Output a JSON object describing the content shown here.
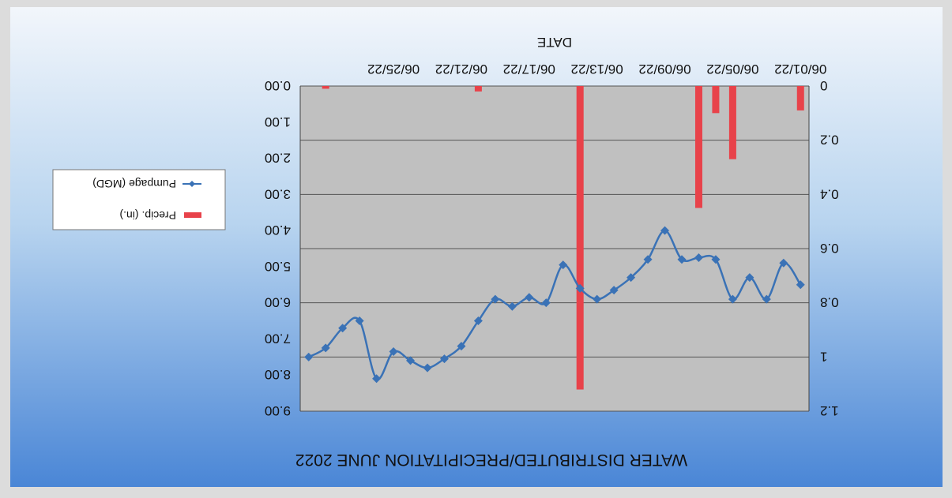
{
  "chart_data": {
    "type": "bar+line",
    "title": "WATER DISTRIBUTED/PRECIPITATION JUNE 2022",
    "xlabel": "DATE",
    "x_tick_labels": [
      "06/01/22",
      "06/05/22",
      "06/09/22",
      "06/13/22",
      "06/17/22",
      "06/21/22",
      "06/25/22"
    ],
    "x": [
      "06/01/22",
      "06/02/22",
      "06/03/22",
      "06/04/22",
      "06/05/22",
      "06/06/22",
      "06/07/22",
      "06/08/22",
      "06/09/22",
      "06/10/22",
      "06/11/22",
      "06/12/22",
      "06/13/22",
      "06/14/22",
      "06/15/22",
      "06/16/22",
      "06/17/22",
      "06/18/22",
      "06/19/22",
      "06/20/22",
      "06/21/22",
      "06/22/22",
      "06/23/22",
      "06/24/22",
      "06/25/22",
      "06/26/22",
      "06/27/22",
      "06/28/22",
      "06/29/22",
      "06/30/22"
    ],
    "left_axis": {
      "label": "",
      "ticks": [
        "0",
        "0.2",
        "0.4",
        "0.6",
        "0.8",
        "1",
        "1.2"
      ],
      "ylim": [
        0,
        1.2
      ],
      "series": "Precip. (in.)"
    },
    "right_axis": {
      "label": "",
      "ticks": [
        "0.00",
        "1.00",
        "2.00",
        "3.00",
        "4.00",
        "5.00",
        "6.00",
        "7.00",
        "8.00",
        "9.00"
      ],
      "ylim": [
        0,
        9
      ]
    },
    "series": [
      {
        "name": "Precip. (in.)",
        "kind": "bar",
        "axis": "left",
        "color": "#e8424a",
        "values": [
          0.09,
          0,
          0,
          0,
          0.27,
          0.1,
          0.45,
          0,
          0,
          0,
          0,
          0,
          0,
          1.12,
          0,
          0,
          0,
          0,
          0,
          0.02,
          0,
          0,
          0,
          0,
          0,
          0,
          0,
          0,
          0.01,
          0
        ]
      },
      {
        "name": "Pumpage (MGD)",
        "kind": "line",
        "axis": "right",
        "color": "#3a72b6",
        "marker": "diamond",
        "values": [
          5.5,
          4.9,
          5.9,
          5.3,
          5.9,
          4.8,
          4.75,
          4.8,
          4.0,
          4.8,
          5.3,
          5.65,
          5.9,
          5.6,
          4.95,
          6.0,
          5.85,
          6.1,
          5.9,
          6.5,
          7.2,
          7.55,
          7.8,
          7.6,
          7.35,
          8.1,
          6.5,
          6.7,
          7.25,
          7.5
        ]
      }
    ],
    "legend": {
      "placement": "right",
      "entries": [
        "Precip. (in.)",
        "Pumpage (MGD)"
      ]
    },
    "grid": true,
    "orientation_note": ""
  }
}
